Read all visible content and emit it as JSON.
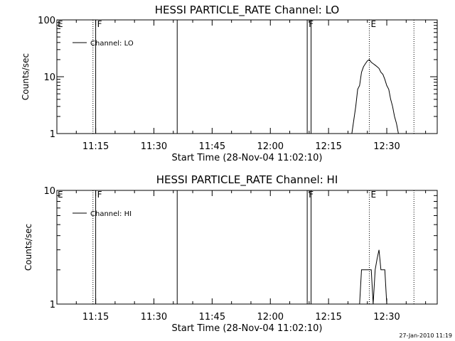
{
  "footer": {
    "timestamp": "27-Jan-2010 11:19"
  },
  "chart_data": [
    {
      "type": "line",
      "title": "HESSI PARTICLE_RATE Channel: LO",
      "xlabel": "Start Time (28-Nov-04 11:02:10)",
      "ylabel": "Counts/sec",
      "yscale": "log",
      "xlim": [
        "11:05",
        "12:43"
      ],
      "ylim": [
        1,
        100
      ],
      "x_ticks": [
        "11:15",
        "11:30",
        "11:45",
        "12:00",
        "12:15",
        "12:30"
      ],
      "y_ticks": [
        {
          "value": 1,
          "label": "1"
        },
        {
          "value": 10,
          "label": "10"
        },
        {
          "value": 100,
          "label": "100"
        }
      ],
      "grid": false,
      "legend": {
        "position": "top-left",
        "label": "Channel: LO"
      },
      "markers": [
        {
          "x": "11:05",
          "label": "E",
          "style": "none"
        },
        {
          "x": "11:14.3",
          "label": "",
          "style": "dotted"
        },
        {
          "x": "11:15",
          "label": "F",
          "style": "solid"
        },
        {
          "x": "11:36",
          "label": "",
          "style": "solid"
        },
        {
          "x": "12:09.5",
          "label": "F",
          "style": "solid"
        },
        {
          "x": "12:10.5",
          "label": "",
          "style": "solid"
        },
        {
          "x": "12:25.5",
          "label": "E",
          "style": "dotted"
        },
        {
          "x": "12:37",
          "label": "",
          "style": "dotted"
        }
      ],
      "series": [
        {
          "name": "Channel: LO",
          "x": [
            "12:21",
            "12:22",
            "12:22.5",
            "12:23",
            "12:23.5",
            "12:24",
            "12:24.5",
            "12:25",
            "12:25.5",
            "12:26",
            "12:26.5",
            "12:27",
            "12:27.5",
            "12:28",
            "12:28.5",
            "12:29",
            "12:29.5",
            "12:30",
            "12:30.5",
            "12:31",
            "12:31.5",
            "12:32",
            "12:32.5",
            "12:33",
            "12:33.5"
          ],
          "y": [
            1,
            3,
            6,
            7,
            12,
            15,
            17,
            19,
            20,
            18,
            17,
            16,
            15,
            14,
            12,
            11,
            9,
            7,
            6,
            4,
            3,
            2,
            1.5,
            1,
            1
          ]
        }
      ]
    },
    {
      "type": "line",
      "title": "HESSI PARTICLE_RATE Channel: HI",
      "xlabel": "Start Time (28-Nov-04 11:02:10)",
      "ylabel": "Counts/sec",
      "yscale": "log",
      "xlim": [
        "11:05",
        "12:43"
      ],
      "ylim": [
        1,
        10
      ],
      "x_ticks": [
        "11:15",
        "11:30",
        "11:45",
        "12:00",
        "12:15",
        "12:30"
      ],
      "y_ticks": [
        {
          "value": 1,
          "label": "1"
        },
        {
          "value": 10,
          "label": "10"
        }
      ],
      "grid": false,
      "legend": {
        "position": "top-left",
        "label": "Channel: HI"
      },
      "markers": [
        {
          "x": "11:05",
          "label": "E",
          "style": "none"
        },
        {
          "x": "11:14.3",
          "label": "",
          "style": "dotted"
        },
        {
          "x": "11:15",
          "label": "F",
          "style": "solid"
        },
        {
          "x": "11:36",
          "label": "",
          "style": "solid"
        },
        {
          "x": "12:09.5",
          "label": "F",
          "style": "solid"
        },
        {
          "x": "12:10.5",
          "label": "",
          "style": "solid"
        },
        {
          "x": "12:25.5",
          "label": "E",
          "style": "dotted"
        },
        {
          "x": "12:37",
          "label": "",
          "style": "dotted"
        }
      ],
      "series": [
        {
          "name": "Channel: HI",
          "x": [
            "12:23",
            "12:23.5",
            "12:24",
            "12:25",
            "12:26",
            "12:26.5",
            "12:27",
            "12:27.5",
            "12:28",
            "12:28.5",
            "12:29",
            "12:29.5",
            "12:30",
            "12:31"
          ],
          "y": [
            1,
            2,
            2,
            2,
            2,
            1,
            2,
            2.5,
            3,
            2,
            2,
            2,
            1,
            1
          ]
        }
      ]
    }
  ]
}
